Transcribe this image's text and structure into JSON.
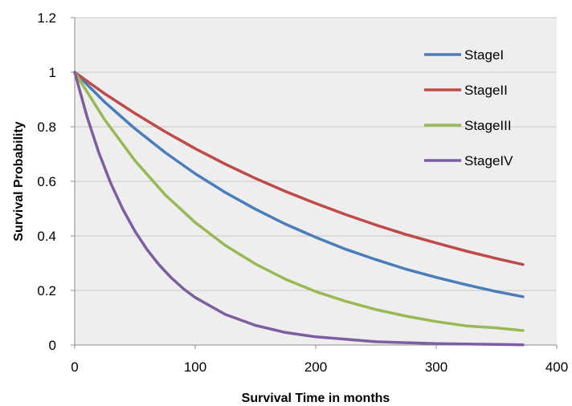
{
  "chart_data": {
    "type": "line",
    "title": "",
    "xlabel": "Survival Time in months",
    "ylabel": "Survival Probability",
    "xlim": [
      0,
      400
    ],
    "ylim": [
      0,
      1.2
    ],
    "xticks": [
      0,
      100,
      200,
      300,
      400
    ],
    "yticks": [
      0,
      0.2,
      0.4,
      0.6,
      0.8,
      1,
      1.2
    ],
    "xtick_labels": [
      "0",
      "100",
      "200",
      "300",
      "400"
    ],
    "ytick_labels": [
      "0",
      "0.2",
      "0.4",
      "0.6",
      "0.8",
      "1",
      "1.2"
    ],
    "grid": "horizontal",
    "plot_background": "#eeeeee",
    "legend_position": "top-right",
    "series": [
      {
        "name": "StageI",
        "color": "#4a7ebb",
        "x": [
          0,
          25,
          50,
          75,
          100,
          125,
          150,
          175,
          200,
          225,
          250,
          275,
          300,
          325,
          350,
          372
        ],
        "y": [
          1.0,
          0.89,
          0.793,
          0.706,
          0.628,
          0.559,
          0.498,
          0.443,
          0.395,
          0.351,
          0.313,
          0.278,
          0.248,
          0.221,
          0.196,
          0.177
        ]
      },
      {
        "name": "StageII",
        "color": "#be4b48",
        "x": [
          0,
          25,
          50,
          75,
          100,
          125,
          150,
          175,
          200,
          225,
          250,
          275,
          300,
          325,
          350,
          372
        ],
        "y": [
          1.0,
          0.921,
          0.849,
          0.782,
          0.72,
          0.663,
          0.611,
          0.563,
          0.519,
          0.478,
          0.44,
          0.405,
          0.374,
          0.344,
          0.317,
          0.295
        ]
      },
      {
        "name": "StageIII",
        "color": "#98b954",
        "x": [
          0,
          25,
          50,
          75,
          100,
          125,
          150,
          175,
          200,
          225,
          250,
          275,
          300,
          325,
          350,
          372
        ],
        "y": [
          1.0,
          0.825,
          0.676,
          0.551,
          0.449,
          0.365,
          0.297,
          0.241,
          0.196,
          0.16,
          0.13,
          0.106,
          0.086,
          0.07,
          0.063,
          0.053
        ]
      },
      {
        "name": "StageIV",
        "color": "#7d5fa0",
        "x": [
          0,
          10,
          20,
          30,
          40,
          50,
          60,
          70,
          80,
          90,
          100,
          125,
          150,
          175,
          200,
          250,
          300,
          372
        ],
        "y": [
          1.0,
          0.84,
          0.705,
          0.592,
          0.497,
          0.417,
          0.35,
          0.294,
          0.247,
          0.207,
          0.174,
          0.112,
          0.072,
          0.046,
          0.03,
          0.012,
          0.005,
          0.001
        ]
      }
    ]
  }
}
